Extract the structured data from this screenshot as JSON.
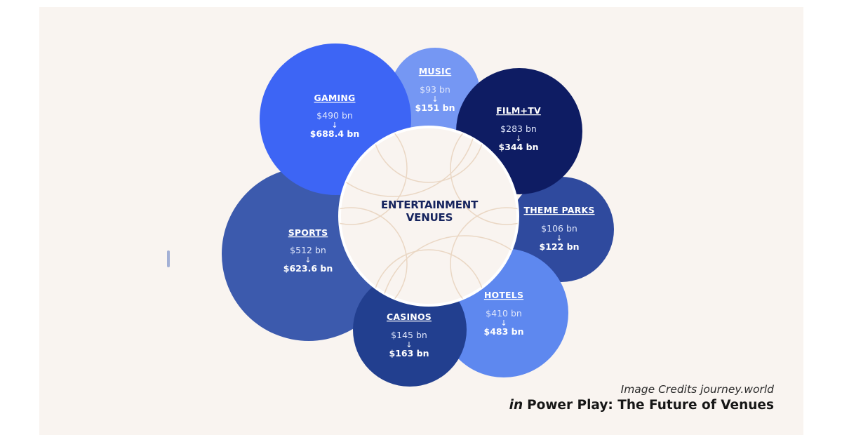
{
  "diagram": {
    "center_label": [
      "ENTERTAINMENT",
      "VENUES"
    ],
    "arrow_glyph": "↓",
    "segments": [
      {
        "key": "sports",
        "title": "SPORTS",
        "from": "$512 bn",
        "to": "$623.6 bn",
        "color": "#3c5aad"
      },
      {
        "key": "gaming",
        "title": "GAMING",
        "from": "$490 bn",
        "to": "$688.4 bn",
        "color": "#3d65f5"
      },
      {
        "key": "music",
        "title": "MUSIC",
        "from": "$93 bn",
        "to": "$151 bn",
        "color": "#7597f3"
      },
      {
        "key": "film-tv",
        "title": "FILM+TV",
        "from": "$283 bn",
        "to": "$344 bn",
        "color": "#0e1c63"
      },
      {
        "key": "theme-parks",
        "title": "THEME PARKS",
        "from": "$106 bn",
        "to": "$122 bn",
        "color": "#2f4a9e"
      },
      {
        "key": "hotels",
        "title": "HOTELS",
        "from": "$410 bn",
        "to": "$483 bn",
        "color": "#5e88ef"
      },
      {
        "key": "casinos",
        "title": "CASINOS",
        "from": "$145 bn",
        "to": "$163 bn",
        "color": "#223f8f"
      }
    ],
    "center_fill": "#f9f4f0",
    "pattern_color": "#ead7c4"
  },
  "credits": {
    "image_credit": "Image Credits journey.world",
    "in_word": "in",
    "report_title": "Power Play: The Future of Venues"
  }
}
